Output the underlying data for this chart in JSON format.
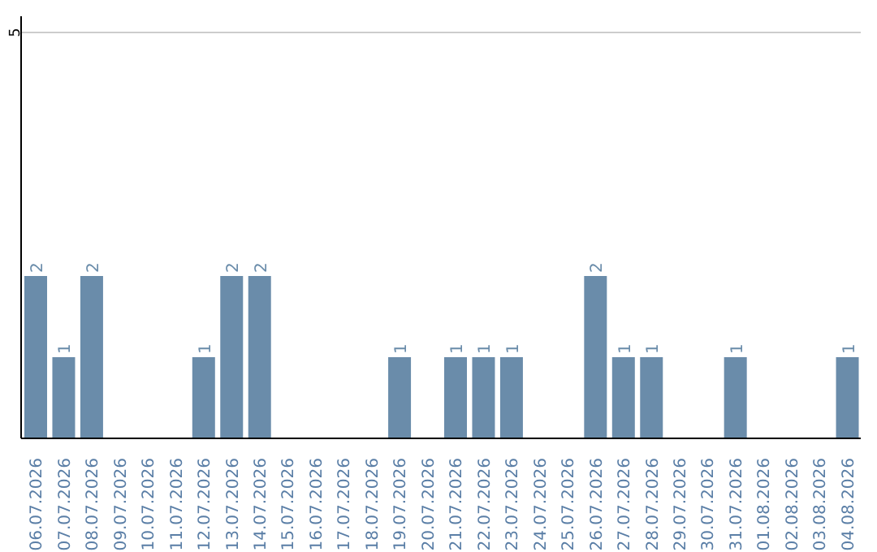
{
  "chart_data": {
    "type": "bar",
    "categories": [
      "06.07.2026",
      "07.07.2026",
      "08.07.2026",
      "09.07.2026",
      "10.07.2026",
      "11.07.2026",
      "12.07.2026",
      "13.07.2026",
      "14.07.2026",
      "15.07.2026",
      "16.07.2026",
      "17.07.2026",
      "18.07.2026",
      "19.07.2026",
      "20.07.2026",
      "21.07.2026",
      "22.07.2026",
      "23.07.2026",
      "24.07.2026",
      "25.07.2026",
      "26.07.2026",
      "27.07.2026",
      "28.07.2026",
      "29.07.2026",
      "30.07.2026",
      "31.07.2026",
      "01.08.2026",
      "02.08.2026",
      "03.08.2026",
      "04.08.2026"
    ],
    "values": [
      2,
      1,
      2,
      0,
      0,
      0,
      1,
      2,
      2,
      0,
      0,
      0,
      0,
      1,
      0,
      1,
      1,
      1,
      0,
      0,
      2,
      1,
      1,
      0,
      0,
      1,
      0,
      0,
      0,
      1
    ],
    "value_labels": [
      "2",
      "1",
      "2",
      null,
      null,
      null,
      "1",
      "2",
      "2",
      null,
      null,
      null,
      null,
      "1",
      null,
      "1",
      "1",
      "1",
      null,
      null,
      "2",
      "1",
      "1",
      null,
      null,
      "1",
      null,
      null,
      null,
      "1"
    ],
    "color": "#6a8caa",
    "ylim": [
      0,
      5.2
    ],
    "yticks": [
      {
        "value": 0,
        "label": null
      },
      5
    ],
    "grid": "y"
  }
}
